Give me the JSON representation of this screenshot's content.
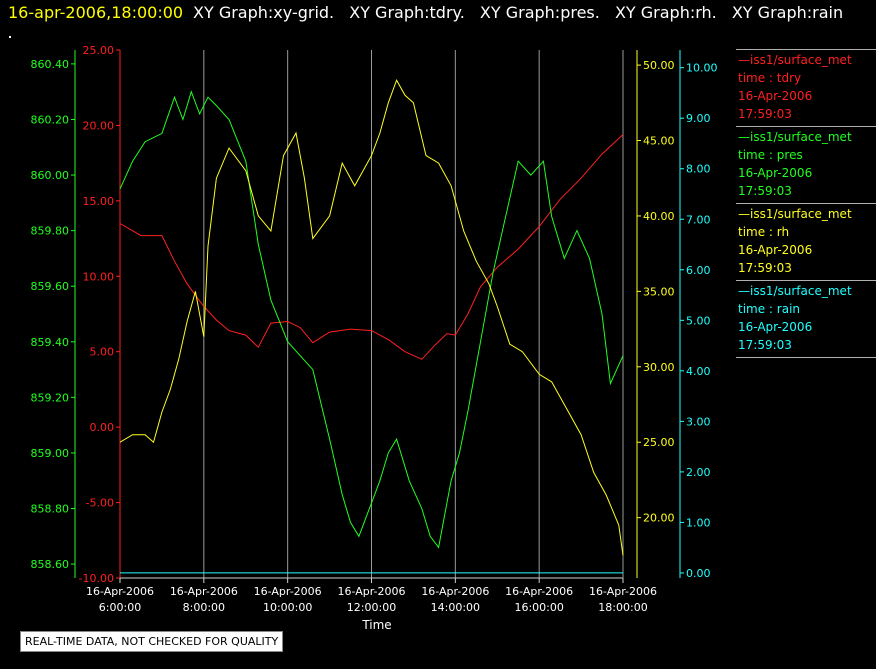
{
  "header": {
    "timestamp": "16-apr-2006,18:00:00",
    "graph_titles": [
      "XY Graph:xy-grid.",
      "XY Graph:tdry.",
      "XY Graph:pres.",
      "XY Graph:rh.",
      "XY Graph:rain"
    ]
  },
  "notice": "REAL-TIME DATA, NOT CHECKED FOR QUALITY",
  "legend": [
    {
      "name": "—iss1/surface_met",
      "label": "time : tdry",
      "date": "16-Apr-2006",
      "time": "17:59:03",
      "color": "#ff2020"
    },
    {
      "name": "—iss1/surface_met",
      "label": "time : pres",
      "date": "16-Apr-2006",
      "time": "17:59:03",
      "color": "#20ff20"
    },
    {
      "name": "—iss1/surface_met",
      "label": "time : rh",
      "date": "16-Apr-2006",
      "time": "17:59:03",
      "color": "#ffff20"
    },
    {
      "name": "—iss1/surface_met",
      "label": "time : rain",
      "date": "16-Apr-2006",
      "time": "17:59:03",
      "color": "#20ffff"
    }
  ],
  "chart_data": {
    "type": "line",
    "xlabel": "Time",
    "x_ticks": [
      {
        "date": "16-Apr-2006",
        "time": "6:00:00",
        "hour": 6
      },
      {
        "date": "16-Apr-2006",
        "time": "8:00:00",
        "hour": 8
      },
      {
        "date": "16-Apr-2006",
        "time": "10:00:00",
        "hour": 10
      },
      {
        "date": "16-Apr-2006",
        "time": "12:00:00",
        "hour": 12
      },
      {
        "date": "16-Apr-2006",
        "time": "14:00:00",
        "hour": 14
      },
      {
        "date": "16-Apr-2006",
        "time": "16:00:00",
        "hour": 16
      },
      {
        "date": "16-Apr-2006",
        "time": "18:00:00",
        "hour": 18
      }
    ],
    "xlim_hours": [
      6,
      18
    ],
    "grid": "vertical lines at x ticks",
    "axes": [
      {
        "id": "pres",
        "color": "#20ff20",
        "side": "left-outer",
        "ylim": [
          858.55,
          860.45
        ],
        "ticks": [
          "858.60",
          "858.80",
          "859.00",
          "859.20",
          "859.40",
          "859.60",
          "859.80",
          "860.00",
          "860.20",
          "860.40"
        ]
      },
      {
        "id": "tdry",
        "color": "#ff2020",
        "side": "left-inner",
        "ylim": [
          -10,
          25
        ],
        "ticks": [
          "-10.00",
          "-5.00",
          "0.00",
          "5.00",
          "10.00",
          "15.00",
          "20.00",
          "25.00"
        ]
      },
      {
        "id": "rh",
        "color": "#ffff20",
        "side": "right-inner",
        "ylim": [
          16,
          51
        ],
        "ticks": [
          "20.00",
          "25.00",
          "30.00",
          "35.00",
          "40.00",
          "45.00",
          "50.00"
        ]
      },
      {
        "id": "rain",
        "color": "#20ffff",
        "side": "right-outer",
        "ylim": [
          -0.1,
          10.35
        ],
        "ticks": [
          "0.00",
          "1.00",
          "2.00",
          "3.00",
          "4.00",
          "5.00",
          "6.00",
          "7.00",
          "8.00",
          "9.00",
          "10.00"
        ]
      }
    ],
    "series": [
      {
        "axis": "tdry",
        "color": "#ff2020",
        "x": [
          6.0,
          6.5,
          7.0,
          7.3,
          7.6,
          8.0,
          8.3,
          8.6,
          9.0,
          9.3,
          9.6,
          10.0,
          10.3,
          10.6,
          11.0,
          11.5,
          12.0,
          12.4,
          12.8,
          13.2,
          13.5,
          13.8,
          14.0,
          14.3,
          14.6,
          15.0,
          15.5,
          16.0,
          16.5,
          17.0,
          17.5,
          18.0
        ],
        "y": [
          13.5,
          12.7,
          12.7,
          11.0,
          9.5,
          8.0,
          7.1,
          6.4,
          6.1,
          5.3,
          6.9,
          7.0,
          6.6,
          5.6,
          6.3,
          6.5,
          6.4,
          5.8,
          5.0,
          4.5,
          5.4,
          6.2,
          6.1,
          7.5,
          9.3,
          10.6,
          11.8,
          13.3,
          15.1,
          16.5,
          18.1,
          19.4
        ]
      },
      {
        "axis": "pres",
        "color": "#20ff20",
        "x": [
          6.0,
          6.3,
          6.6,
          7.0,
          7.3,
          7.5,
          7.7,
          7.9,
          8.1,
          8.3,
          8.6,
          9.0,
          9.3,
          9.6,
          10.0,
          10.3,
          10.6,
          11.0,
          11.3,
          11.5,
          11.7,
          12.0,
          12.2,
          12.4,
          12.6,
          12.9,
          13.2,
          13.4,
          13.6,
          13.9,
          14.1,
          14.3,
          14.6,
          14.9,
          15.2,
          15.5,
          15.8,
          16.1,
          16.3,
          16.6,
          16.9,
          17.2,
          17.5,
          17.7,
          18.0
        ],
        "y": [
          859.95,
          860.05,
          860.12,
          860.15,
          860.28,
          860.2,
          860.3,
          860.22,
          860.28,
          860.25,
          860.2,
          860.05,
          859.75,
          859.55,
          859.4,
          859.35,
          859.3,
          859.05,
          858.85,
          858.75,
          858.7,
          858.82,
          858.9,
          859.0,
          859.05,
          858.9,
          858.8,
          858.7,
          858.66,
          858.9,
          859.0,
          859.15,
          859.4,
          859.65,
          859.85,
          860.05,
          860.0,
          860.05,
          859.85,
          859.7,
          859.8,
          859.7,
          859.5,
          859.25,
          859.35
        ]
      },
      {
        "axis": "rh",
        "color": "#ffff20",
        "x": [
          6.0,
          6.3,
          6.6,
          6.8,
          7.0,
          7.2,
          7.4,
          7.6,
          7.8,
          8.0,
          8.1,
          8.3,
          8.6,
          9.0,
          9.3,
          9.6,
          9.9,
          10.2,
          10.4,
          10.6,
          11.0,
          11.3,
          11.6,
          12.0,
          12.2,
          12.4,
          12.6,
          12.8,
          13.0,
          13.3,
          13.6,
          13.9,
          14.2,
          14.5,
          14.8,
          15.0,
          15.3,
          15.6,
          16.0,
          16.3,
          16.6,
          17.0,
          17.3,
          17.6,
          17.9,
          18.0
        ],
        "y": [
          25.0,
          25.5,
          25.5,
          25.0,
          27.0,
          28.5,
          30.5,
          33.0,
          35.0,
          32.0,
          38.0,
          42.5,
          44.5,
          43.0,
          40.0,
          39.0,
          44.0,
          45.5,
          42.5,
          38.5,
          40.0,
          43.5,
          42.0,
          44.0,
          45.5,
          47.5,
          49.0,
          48.0,
          47.5,
          44.0,
          43.5,
          42.0,
          39.0,
          37.0,
          35.5,
          34.0,
          31.5,
          31.0,
          29.5,
          29.0,
          27.5,
          25.5,
          23.0,
          21.5,
          19.5,
          17.5
        ]
      },
      {
        "axis": "rain",
        "color": "#20ffff",
        "x": [
          6.0,
          18.0
        ],
        "y": [
          0.0,
          0.0
        ]
      }
    ]
  }
}
